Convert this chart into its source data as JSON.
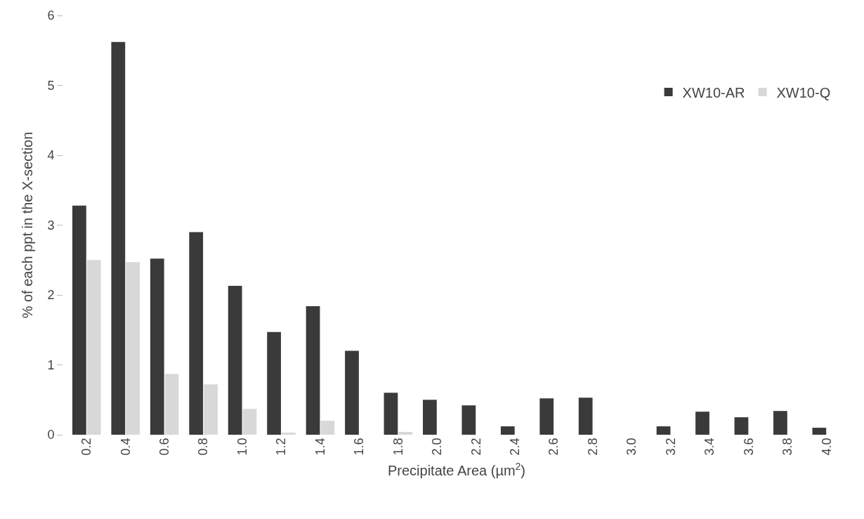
{
  "chart_data": {
    "type": "bar",
    "xlabel": "Precipitate Area (µm$^{2}$)",
    "ylabel": "% of each ppt in the X-section",
    "categories": [
      "0.2",
      "0.4",
      "0.6",
      "0.8",
      "1.0",
      "1.2",
      "1.4",
      "1.6",
      "1.8",
      "2.0",
      "2.2",
      "2.4",
      "2.6",
      "2.8",
      "3.0",
      "3.2",
      "3.4",
      "3.6",
      "3.8",
      "4.0"
    ],
    "series": [
      {
        "name": "XW10-AR",
        "color": "#3a3a3a",
        "values": [
          3.28,
          5.62,
          2.52,
          2.9,
          2.13,
          1.47,
          1.84,
          1.2,
          0.6,
          0.5,
          0.42,
          0.12,
          0.52,
          0.53,
          0,
          0.12,
          0.33,
          0.25,
          0.34,
          0.1
        ]
      },
      {
        "name": "XW10-Q",
        "color": "#d8d8d8",
        "values": [
          2.5,
          2.47,
          0.87,
          0.72,
          0.37,
          0.03,
          0.2,
          0,
          0.04,
          0,
          0,
          0,
          0,
          0,
          0,
          0,
          0,
          0,
          0,
          0
        ]
      }
    ],
    "ylim": [
      0,
      6
    ],
    "yticks": [
      0,
      1,
      2,
      3,
      4,
      5,
      6
    ],
    "legend": "top right"
  }
}
